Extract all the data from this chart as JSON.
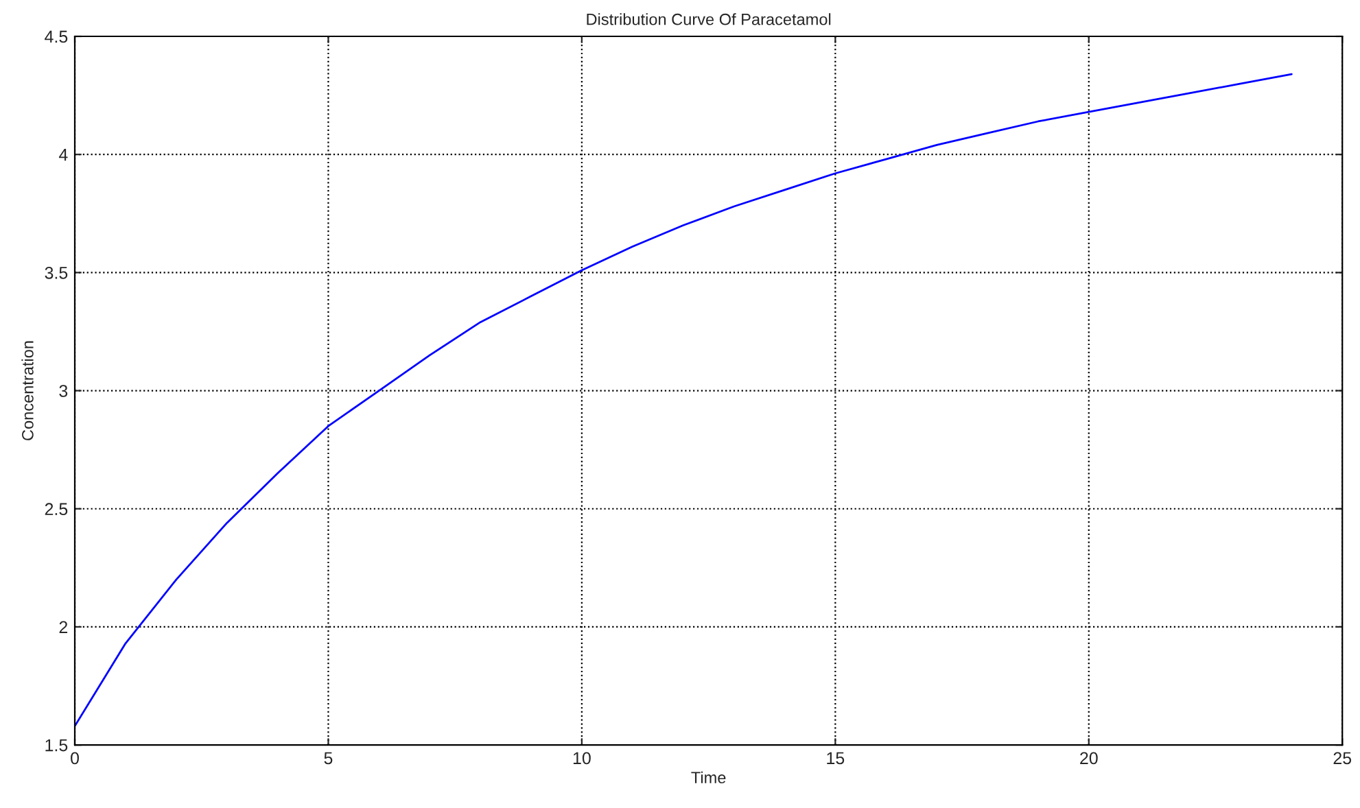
{
  "chart_data": {
    "type": "line",
    "title": "Distribution Curve Of Paracetamol",
    "xlabel": "Time",
    "ylabel": "Concentration",
    "x": [
      0,
      1,
      2,
      3,
      4,
      5,
      6,
      7,
      8,
      9,
      10,
      11,
      12,
      13,
      14,
      15,
      16,
      17,
      18,
      19,
      20,
      21,
      22,
      23,
      24
    ],
    "series": [
      {
        "color": "#0000ff",
        "values": [
          1.58,
          1.93,
          2.2,
          2.44,
          2.65,
          2.85,
          3.0,
          3.15,
          3.29,
          3.4,
          3.51,
          3.61,
          3.7,
          3.78,
          3.85,
          3.92,
          3.98,
          4.04,
          4.09,
          4.14,
          4.18,
          4.22,
          4.26,
          4.3,
          4.34
        ]
      }
    ],
    "xlim": [
      0,
      25
    ],
    "ylim": [
      1.5,
      4.5
    ],
    "xticks": [
      0,
      5,
      10,
      15,
      20,
      25
    ],
    "yticks": [
      1.5,
      2,
      2.5,
      3,
      3.5,
      4,
      4.5
    ],
    "grid": true,
    "line_style": "solid",
    "marker": "none"
  }
}
